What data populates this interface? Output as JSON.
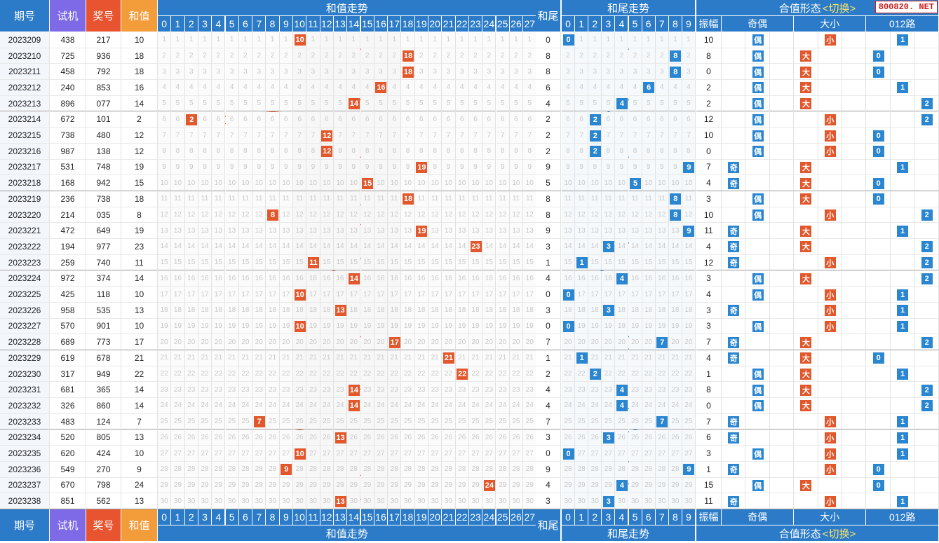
{
  "header": {
    "col_qh": "期号",
    "col_sj": "试机",
    "col_jh": "奖号",
    "col_hz": "和值",
    "sum_trend": "和值走势",
    "tail": "和尾",
    "tail_trend": "和尾走势",
    "form": "合值形态",
    "switch": "<切换>",
    "amp": "振幅",
    "odd_even": "奇偶",
    "big_small": "大小",
    "route": "012路",
    "badge": "800820. NET"
  },
  "sum_cols": [
    "0",
    "1",
    "2",
    "3",
    "4",
    "5",
    "6",
    "7",
    "8",
    "9",
    "10",
    "11",
    "12",
    "13",
    "14",
    "15",
    "16",
    "17",
    "18",
    "19",
    "20",
    "21",
    "22",
    "23",
    "24",
    "25",
    "26",
    "27"
  ],
  "tail_cols": [
    "0",
    "1",
    "2",
    "3",
    "4",
    "5",
    "6",
    "7",
    "8",
    "9"
  ],
  "labels": {
    "odd": "奇",
    "even": "偶",
    "big": "大",
    "small": "小"
  },
  "colors": {
    "header_blue": "#2b7bc8",
    "sj_purple": "#7e69e6",
    "jh_red": "#e8542f",
    "hz_orange": "#f39c3a",
    "sum_marker": "#e2572b",
    "tail_marker": "#2a86d1"
  },
  "rows": [
    {
      "qh": "2023209",
      "sj": "438",
      "jh": "217",
      "hz": "10",
      "tail": "0",
      "amp": "10",
      "oe": "even",
      "bs": "small",
      "r": "1"
    },
    {
      "qh": "2023210",
      "sj": "725",
      "jh": "936",
      "hz": "18",
      "tail": "8",
      "amp": "8",
      "oe": "even",
      "bs": "big",
      "r": "0"
    },
    {
      "qh": "2023211",
      "sj": "458",
      "jh": "792",
      "hz": "18",
      "tail": "8",
      "amp": "0",
      "oe": "even",
      "bs": "big",
      "r": "0"
    },
    {
      "qh": "2023212",
      "sj": "240",
      "jh": "853",
      "hz": "16",
      "tail": "6",
      "amp": "2",
      "oe": "even",
      "bs": "big",
      "r": "1"
    },
    {
      "qh": "2023213",
      "sj": "896",
      "jh": "077",
      "hz": "14",
      "tail": "4",
      "amp": "2",
      "oe": "even",
      "bs": "big",
      "r": "2"
    },
    {
      "qh": "2023214",
      "sj": "672",
      "jh": "101",
      "hz": "2",
      "tail": "2",
      "amp": "12",
      "oe": "even",
      "bs": "small",
      "r": "2"
    },
    {
      "qh": "2023215",
      "sj": "738",
      "jh": "480",
      "hz": "12",
      "tail": "2",
      "amp": "10",
      "oe": "even",
      "bs": "small",
      "r": "0"
    },
    {
      "qh": "2023216",
      "sj": "987",
      "jh": "138",
      "hz": "12",
      "tail": "2",
      "amp": "0",
      "oe": "even",
      "bs": "small",
      "r": "0"
    },
    {
      "qh": "2023217",
      "sj": "531",
      "jh": "748",
      "hz": "19",
      "tail": "9",
      "amp": "7",
      "oe": "odd",
      "bs": "big",
      "r": "1"
    },
    {
      "qh": "2023218",
      "sj": "168",
      "jh": "942",
      "hz": "15",
      "tail": "5",
      "amp": "4",
      "oe": "odd",
      "bs": "big",
      "r": "0"
    },
    {
      "qh": "2023219",
      "sj": "236",
      "jh": "738",
      "hz": "18",
      "tail": "8",
      "amp": "3",
      "oe": "even",
      "bs": "big",
      "r": "0"
    },
    {
      "qh": "2023220",
      "sj": "214",
      "jh": "035",
      "hz": "8",
      "tail": "8",
      "amp": "10",
      "oe": "even",
      "bs": "small",
      "r": "2"
    },
    {
      "qh": "2023221",
      "sj": "472",
      "jh": "649",
      "hz": "19",
      "tail": "9",
      "amp": "11",
      "oe": "odd",
      "bs": "big",
      "r": "1"
    },
    {
      "qh": "2023222",
      "sj": "194",
      "jh": "977",
      "hz": "23",
      "tail": "3",
      "amp": "4",
      "oe": "odd",
      "bs": "big",
      "r": "2"
    },
    {
      "qh": "2023223",
      "sj": "259",
      "jh": "740",
      "hz": "11",
      "tail": "1",
      "amp": "12",
      "oe": "odd",
      "bs": "small",
      "r": "2"
    },
    {
      "qh": "2023224",
      "sj": "972",
      "jh": "374",
      "hz": "14",
      "tail": "4",
      "amp": "3",
      "oe": "even",
      "bs": "big",
      "r": "2"
    },
    {
      "qh": "2023225",
      "sj": "425",
      "jh": "118",
      "hz": "10",
      "tail": "0",
      "amp": "4",
      "oe": "even",
      "bs": "small",
      "r": "1"
    },
    {
      "qh": "2023226",
      "sj": "958",
      "jh": "535",
      "hz": "13",
      "tail": "3",
      "amp": "3",
      "oe": "odd",
      "bs": "small",
      "r": "1"
    },
    {
      "qh": "2023227",
      "sj": "570",
      "jh": "901",
      "hz": "10",
      "tail": "0",
      "amp": "3",
      "oe": "even",
      "bs": "small",
      "r": "1"
    },
    {
      "qh": "2023228",
      "sj": "689",
      "jh": "773",
      "hz": "17",
      "tail": "7",
      "amp": "7",
      "oe": "odd",
      "bs": "big",
      "r": "2"
    },
    {
      "qh": "2023229",
      "sj": "619",
      "jh": "678",
      "hz": "21",
      "tail": "1",
      "amp": "4",
      "oe": "odd",
      "bs": "big",
      "r": "0"
    },
    {
      "qh": "2023230",
      "sj": "317",
      "jh": "949",
      "hz": "22",
      "tail": "2",
      "amp": "1",
      "oe": "even",
      "bs": "big",
      "r": "1"
    },
    {
      "qh": "2023231",
      "sj": "681",
      "jh": "365",
      "hz": "14",
      "tail": "4",
      "amp": "8",
      "oe": "even",
      "bs": "big",
      "r": "2"
    },
    {
      "qh": "2023232",
      "sj": "326",
      "jh": "860",
      "hz": "14",
      "tail": "4",
      "amp": "0",
      "oe": "even",
      "bs": "big",
      "r": "2"
    },
    {
      "qh": "2023233",
      "sj": "483",
      "jh": "124",
      "hz": "7",
      "tail": "7",
      "amp": "7",
      "oe": "odd",
      "bs": "small",
      "r": "1"
    },
    {
      "qh": "2023234",
      "sj": "520",
      "jh": "805",
      "hz": "13",
      "tail": "3",
      "amp": "6",
      "oe": "odd",
      "bs": "small",
      "r": "1"
    },
    {
      "qh": "2023235",
      "sj": "620",
      "jh": "424",
      "hz": "10",
      "tail": "0",
      "amp": "3",
      "oe": "even",
      "bs": "small",
      "r": "1"
    },
    {
      "qh": "2023236",
      "sj": "549",
      "jh": "270",
      "hz": "9",
      "tail": "9",
      "amp": "1",
      "oe": "odd",
      "bs": "small",
      "r": "0"
    },
    {
      "qh": "2023237",
      "sj": "670",
      "jh": "798",
      "hz": "24",
      "tail": "4",
      "amp": "15",
      "oe": "even",
      "bs": "big",
      "r": "0"
    },
    {
      "qh": "2023238",
      "sj": "851",
      "jh": "562",
      "hz": "13",
      "tail": "3",
      "amp": "11",
      "oe": "odd",
      "bs": "small",
      "r": "1"
    }
  ]
}
